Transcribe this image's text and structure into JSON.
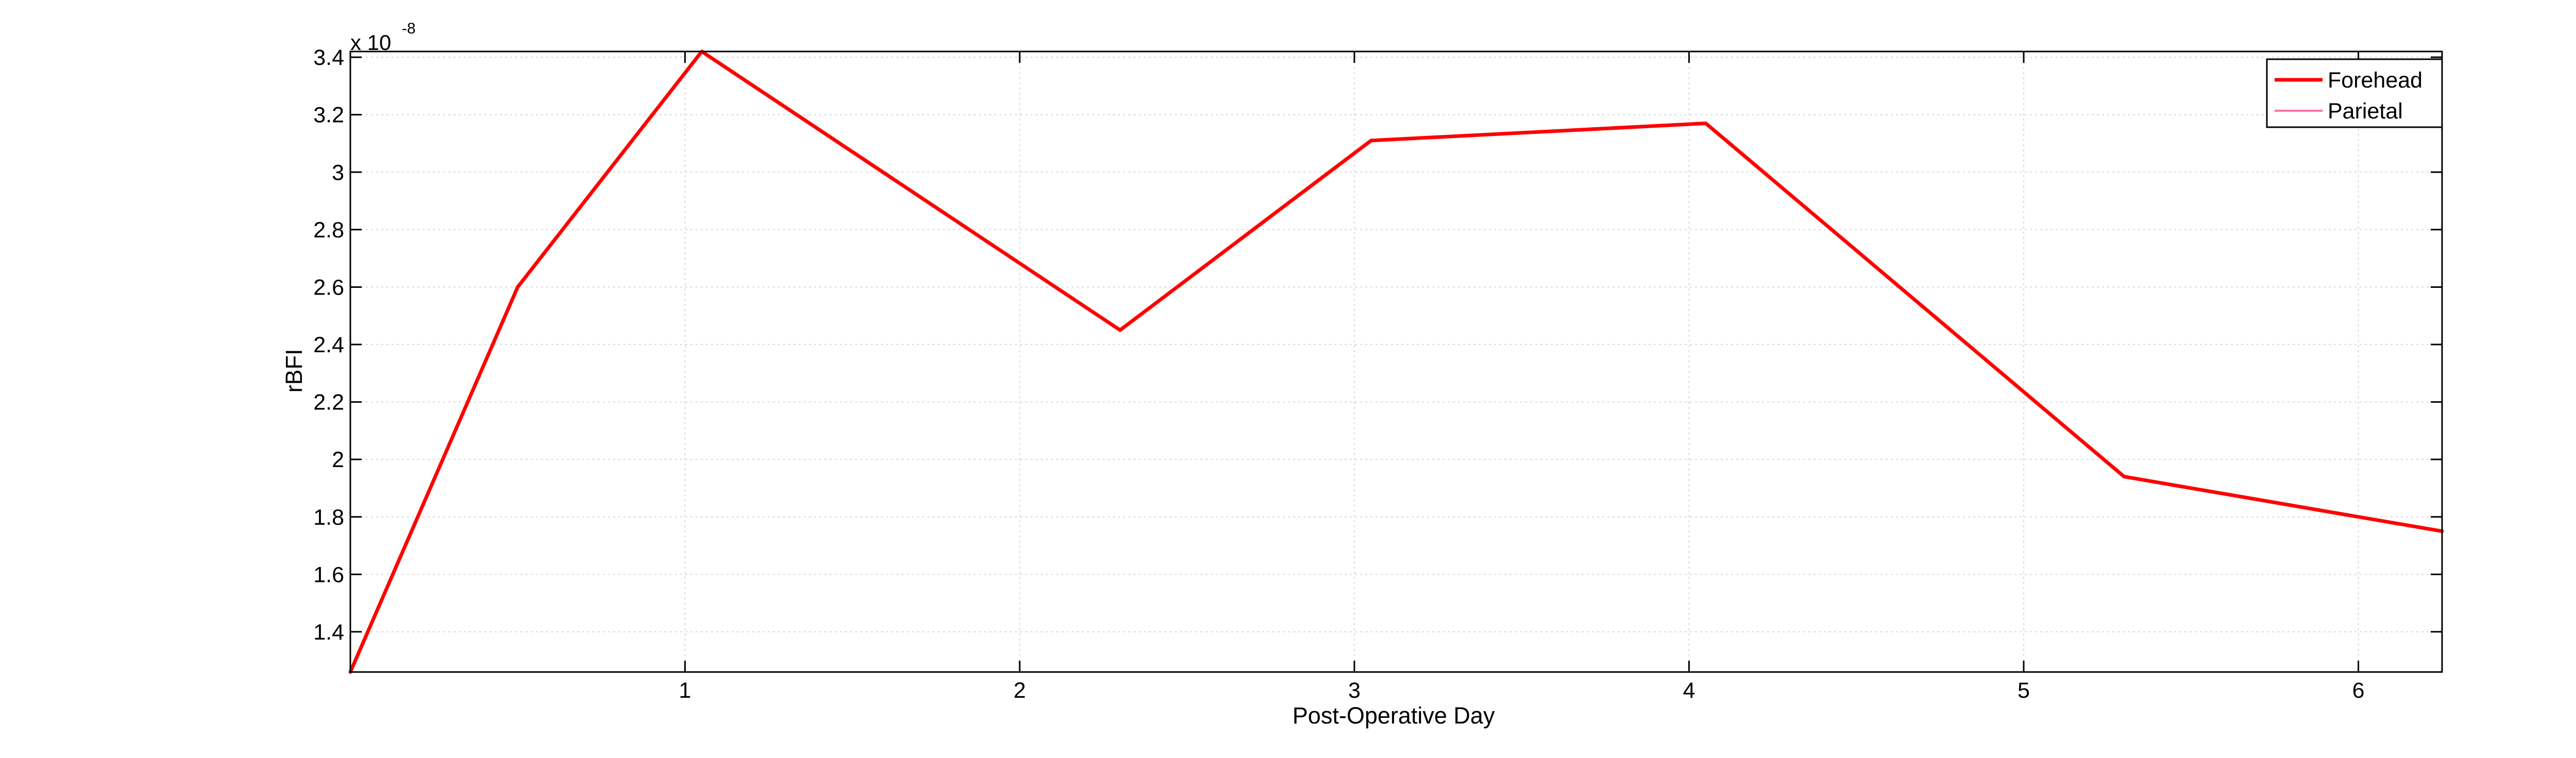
{
  "colors": {
    "background": "#ffffff",
    "axis": "#000000",
    "grid": "#d9d9d9",
    "forehead": "#ff0000",
    "parietal": "#ff6fa8"
  },
  "chart_data": {
    "type": "line",
    "title": "",
    "xlabel": "Post-Operative Day",
    "ylabel": "rBFI",
    "y_multiplier_label": "x 10",
    "y_multiplier_exponent": "-8",
    "xlim": [
      0,
      6.25
    ],
    "ylim": [
      1.26,
      3.42
    ],
    "x_ticks": [
      1,
      2,
      3,
      4,
      5,
      6
    ],
    "x_tick_labels": [
      "1",
      "2",
      "3",
      "4",
      "5",
      "6"
    ],
    "y_ticks": [
      1.4,
      1.6,
      1.8,
      2.0,
      2.2,
      2.4,
      2.6,
      2.8,
      3.0,
      3.2,
      3.4
    ],
    "y_tick_labels": [
      "1.4",
      "1.6",
      "1.8",
      "2",
      "2.2",
      "2.4",
      "2.6",
      "2.8",
      "3",
      "3.2",
      "3.4"
    ],
    "grid": true,
    "legend_position": "top-right",
    "series": [
      {
        "name": "Forehead",
        "color": "#ff0000",
        "x": [
          0.0,
          0.5,
          1.05,
          2.3,
          3.05,
          4.05,
          5.3,
          6.25
        ],
        "y": [
          1.26,
          2.6,
          3.42,
          2.45,
          3.11,
          3.17,
          1.94,
          1.75
        ]
      },
      {
        "name": "Parietal",
        "color": "#ff6fa8",
        "x": [],
        "y": []
      }
    ]
  }
}
